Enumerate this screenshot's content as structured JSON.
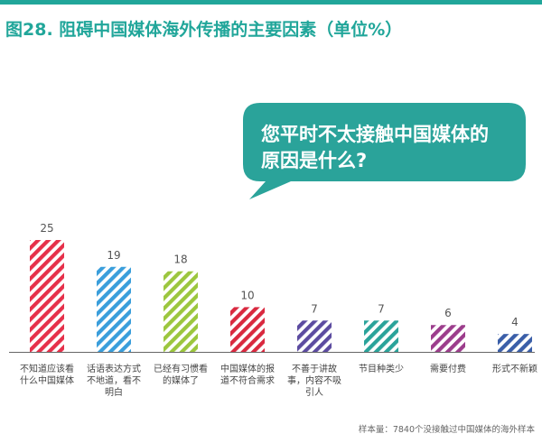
{
  "title": "图28. 阻碍中国媒体海外传播的主要因素（单位%）",
  "callout": {
    "lines": [
      "您平时不太接触中国媒体的",
      "原因是什么?"
    ],
    "color": "#2aa39a"
  },
  "footnote": "样本量：7840个没接触过中国媒体的海外样本",
  "colors": {
    "accent": "#21a69a",
    "axis": "#666666"
  },
  "chart_data": {
    "type": "bar",
    "title": "图28. 阻碍中国媒体海外传播的主要因素（单位%）",
    "ylim": [
      0,
      25
    ],
    "grid": false,
    "categories": [
      [
        "不知道应该看",
        "什么中国媒体"
      ],
      [
        "话语表达方式",
        "不地道，看不",
        "明白"
      ],
      [
        "已经有习惯看",
        "的媒体了"
      ],
      [
        "中国媒体的报",
        "道不符合需求"
      ],
      [
        "不善于讲故",
        "事，内容不吸",
        "引人"
      ],
      [
        "节目种类少"
      ],
      [
        "需要付费"
      ],
      [
        "形式不新颖"
      ]
    ],
    "values": [
      25,
      19,
      18,
      10,
      7,
      7,
      6,
      4
    ],
    "bar_colors": [
      "#e6304a",
      "#3a9edb",
      "#9cc63e",
      "#d9293f",
      "#5c4ba0",
      "#2aa39a",
      "#9c3d8c",
      "#3a5ea8"
    ]
  }
}
